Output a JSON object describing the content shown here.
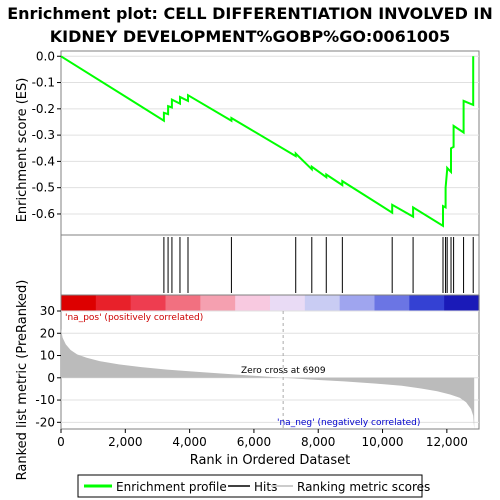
{
  "chart_data": {
    "type": "line",
    "title_line1": "Enrichment plot: CELL DIFFERENTIATION INVOLVED IN",
    "title_line2": "KIDNEY DEVELOPMENT%GOBP%GO:0061005",
    "es_panel": {
      "ylabel": "Enrichment score (ES)",
      "ylim": [
        -0.68,
        0.02
      ],
      "yticks": [
        0.0,
        -0.1,
        -0.2,
        -0.3,
        -0.4,
        -0.5,
        -0.6
      ],
      "ytick_labels": [
        "0.0",
        "-0.1",
        "-0.2",
        "-0.3",
        "-0.4",
        "-0.5",
        "-0.6"
      ],
      "series_name": "Enrichment profile",
      "color": "#00ff00",
      "x": [
        0,
        3200,
        3200,
        3330,
        3330,
        3450,
        3450,
        3700,
        3700,
        3950,
        3950,
        5300,
        5300,
        7300,
        7300,
        7800,
        7800,
        8250,
        8250,
        8750,
        8750,
        10300,
        10300,
        10950,
        10950,
        11880,
        11880,
        11960,
        11960,
        12010,
        12010,
        12130,
        12130,
        12210,
        12210,
        12520,
        12520,
        12820,
        12820
      ],
      "y": [
        0.0,
        -0.245,
        -0.215,
        -0.22,
        -0.19,
        -0.195,
        -0.165,
        -0.18,
        -0.155,
        -0.17,
        -0.148,
        -0.245,
        -0.235,
        -0.38,
        -0.37,
        -0.43,
        -0.42,
        -0.46,
        -0.45,
        -0.49,
        -0.475,
        -0.595,
        -0.565,
        -0.61,
        -0.575,
        -0.645,
        -0.57,
        -0.575,
        -0.5,
        -0.43,
        -0.425,
        -0.44,
        -0.35,
        -0.345,
        -0.265,
        -0.29,
        -0.17,
        -0.185,
        0.0
      ]
    },
    "hits": [
      3200,
      3330,
      3450,
      3700,
      3950,
      5300,
      7300,
      7800,
      8250,
      8750,
      10300,
      10950,
      11880,
      11960,
      12010,
      12130,
      12210,
      12520,
      12820
    ],
    "heatmap_colors": [
      "#dd0000",
      "#e8212a",
      "#ee3d50",
      "#f27080",
      "#f5a0b0",
      "#f8c9e0",
      "#e9dbf5",
      "#c9ccf3",
      "#9fa5ef",
      "#6b75e4",
      "#3441d3",
      "#1a1ab8"
    ],
    "metric_panel": {
      "ylabel": "Ranked list metric (PreRanked)",
      "ylim": [
        -23,
        30
      ],
      "yticks": [
        30,
        20,
        10,
        0,
        -10,
        -20
      ],
      "ytick_labels": [
        "30",
        "20",
        "10",
        "0",
        "-10",
        "-20"
      ],
      "zero_cross_label": "Zero cross at 6909",
      "zero_cross": 6909,
      "pos_label": "'na_pos' (positively correlated)",
      "neg_label": "'na_neg' (negatively correlated)",
      "pos_color": "#cc0000",
      "neg_color": "#0000cc",
      "fill_color": "#bbbbbb",
      "profile_x": [
        0,
        50,
        150,
        300,
        500,
        800,
        1200,
        1800,
        2500,
        3300,
        4200,
        5200,
        6000,
        6909,
        7800,
        8800,
        9800,
        10600,
        11200,
        11700,
        12100,
        12400,
        12600,
        12750,
        12820,
        12850
      ],
      "profile_y": [
        22,
        18,
        15,
        12.5,
        10.5,
        9,
        7.5,
        6,
        4.8,
        3.7,
        2.7,
        1.7,
        0.9,
        0,
        -0.8,
        -1.6,
        -2.6,
        -3.6,
        -4.8,
        -6,
        -7.5,
        -9,
        -11,
        -14,
        -17,
        -23
      ]
    },
    "xlabel": "Rank in Ordered Dataset",
    "xlim": [
      0,
      13000
    ],
    "xticks": [
      0,
      2000,
      4000,
      6000,
      8000,
      10000,
      12000
    ],
    "xtick_labels": [
      "0",
      "2,000",
      "4,000",
      "6,000",
      "8,000",
      "10,000",
      "12,000"
    ],
    "legend": {
      "enrichment_label": "Enrichment profile",
      "hits_label": "Hits",
      "metric_label": "Ranking metric scores",
      "enrichment_color": "#00ff00",
      "hits_color": "#000000",
      "metric_color": "#cccccc"
    }
  }
}
